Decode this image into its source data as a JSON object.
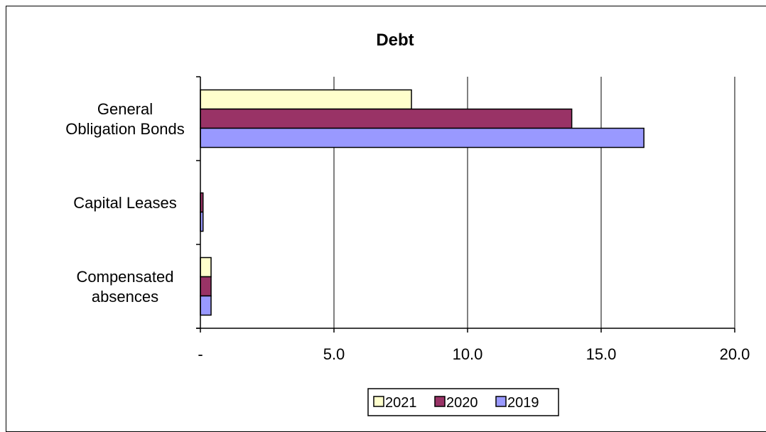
{
  "chart_data": {
    "type": "bar",
    "orientation": "horizontal",
    "title": "Debt",
    "categories": [
      [
        "General",
        "Obligation Bonds"
      ],
      [
        "Capital Leases"
      ],
      [
        "Compensated",
        "absences"
      ]
    ],
    "series": [
      {
        "name": "2021",
        "color": "#FFFFCC",
        "values": [
          7.9,
          0.0,
          0.4
        ]
      },
      {
        "name": "2020",
        "color": "#993366",
        "values": [
          13.9,
          0.1,
          0.4
        ]
      },
      {
        "name": "2019",
        "color": "#9999FF",
        "values": [
          16.6,
          0.1,
          0.4
        ]
      }
    ],
    "xlim": [
      0,
      20
    ],
    "xticks": [
      0,
      5,
      10,
      15,
      20
    ],
    "xtick_labels": [
      "-",
      "5.0",
      "10.0",
      "15.0",
      "20.0"
    ],
    "grid": "vertical",
    "legend_position": "bottom"
  }
}
